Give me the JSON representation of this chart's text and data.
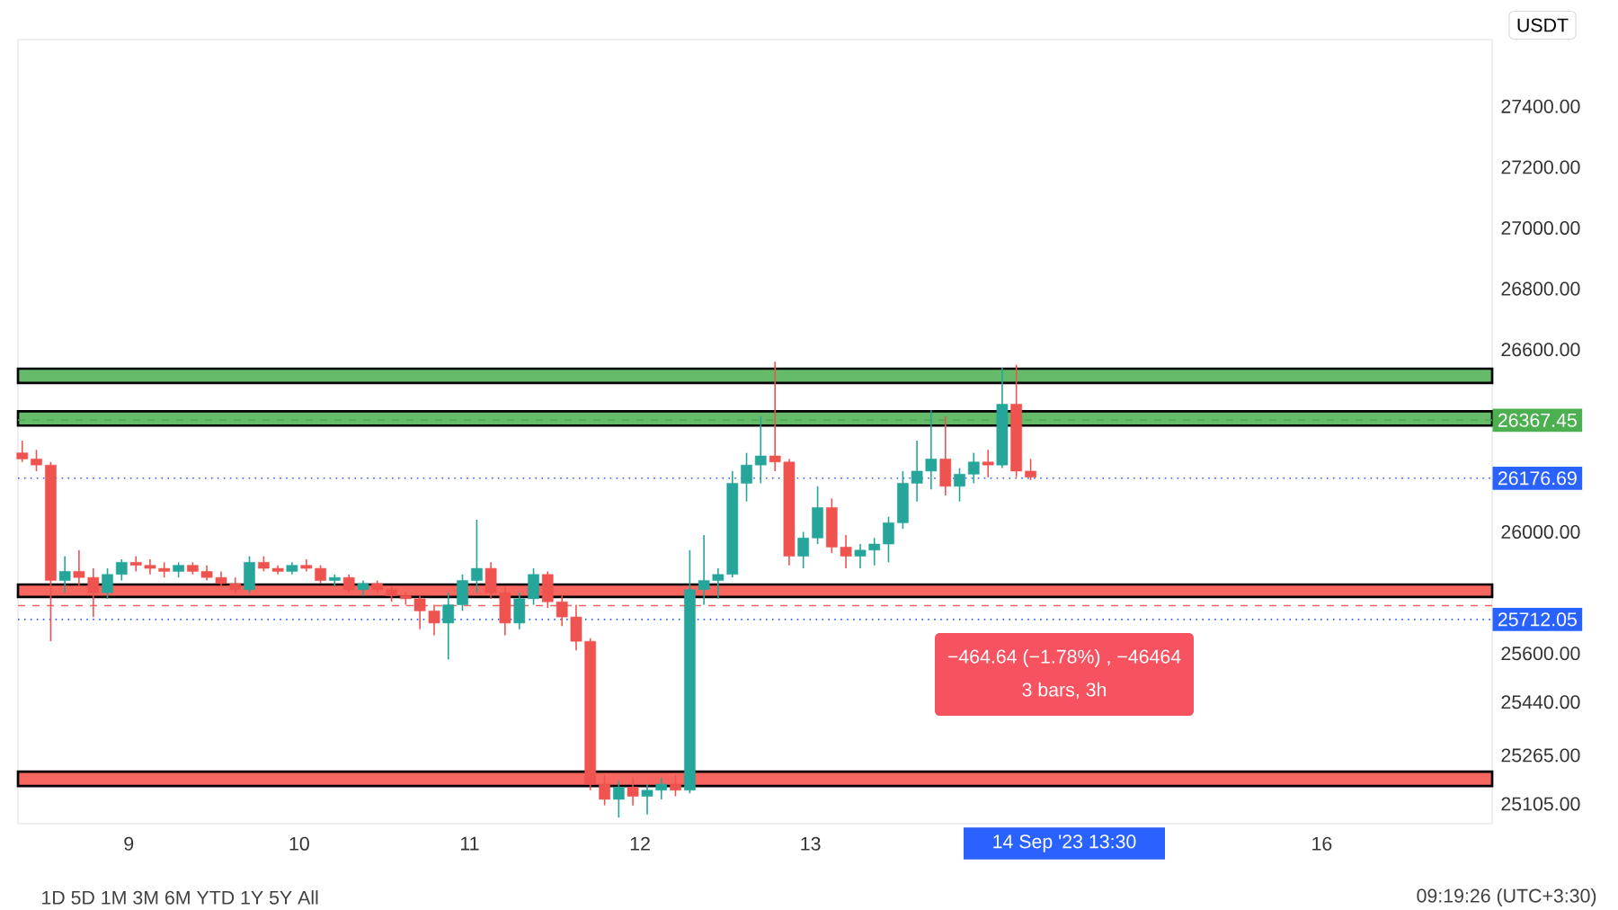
{
  "chart_data": {
    "type": "candlestick",
    "x": [
      8.375,
      8.458,
      8.542,
      8.625,
      8.708,
      8.792,
      8.875,
      8.958,
      9.042,
      9.125,
      9.208,
      9.292,
      9.375,
      9.458,
      9.542,
      9.625,
      9.708,
      9.792,
      9.875,
      9.958,
      10.042,
      10.125,
      10.208,
      10.292,
      10.375,
      10.458,
      10.542,
      10.625,
      10.708,
      10.792,
      10.875,
      10.958,
      11.042,
      11.125,
      11.208,
      11.292,
      11.375,
      11.458,
      11.542,
      11.625,
      11.708,
      11.792,
      11.875,
      11.958,
      12.042,
      12.125,
      12.208,
      12.292,
      12.375,
      12.458,
      12.542,
      12.625,
      12.708,
      12.792,
      12.875,
      12.958,
      13.042,
      13.125,
      13.208,
      13.292,
      13.375,
      13.458,
      13.542,
      13.625,
      13.708,
      13.792,
      13.875,
      13.958,
      14.042,
      14.125,
      14.208,
      14.292
    ],
    "ohlc": [
      [
        26260,
        26300,
        26230,
        26240
      ],
      [
        26240,
        26270,
        26200,
        26220
      ],
      [
        26220,
        26230,
        25640,
        25840
      ],
      [
        25840,
        25920,
        25800,
        25870
      ],
      [
        25870,
        25940,
        25820,
        25850
      ],
      [
        25850,
        25880,
        25720,
        25800
      ],
      [
        25800,
        25880,
        25780,
        25860
      ],
      [
        25860,
        25910,
        25840,
        25900
      ],
      [
        25900,
        25920,
        25870,
        25890
      ],
      [
        25890,
        25910,
        25860,
        25880
      ],
      [
        25880,
        25900,
        25850,
        25870
      ],
      [
        25870,
        25900,
        25850,
        25890
      ],
      [
        25890,
        25900,
        25860,
        25870
      ],
      [
        25870,
        25890,
        25840,
        25850
      ],
      [
        25850,
        25870,
        25820,
        25830
      ],
      [
        25830,
        25850,
        25800,
        25810
      ],
      [
        25810,
        25920,
        25800,
        25900
      ],
      [
        25900,
        25920,
        25870,
        25880
      ],
      [
        25880,
        25890,
        25860,
        25870
      ],
      [
        25870,
        25900,
        25860,
        25890
      ],
      [
        25890,
        25910,
        25870,
        25880
      ],
      [
        25880,
        25890,
        25830,
        25840
      ],
      [
        25840,
        25860,
        25820,
        25850
      ],
      [
        25850,
        25860,
        25800,
        25810
      ],
      [
        25810,
        25840,
        25790,
        25830
      ],
      [
        25830,
        25840,
        25800,
        25810
      ],
      [
        25810,
        25820,
        25770,
        25790
      ],
      [
        25790,
        25800,
        25760,
        25780
      ],
      [
        25780,
        25790,
        25680,
        25740
      ],
      [
        25740,
        25760,
        25660,
        25700
      ],
      [
        25700,
        25800,
        25580,
        25760
      ],
      [
        25760,
        25860,
        25740,
        25840
      ],
      [
        25840,
        26040,
        25800,
        25880
      ],
      [
        25880,
        25900,
        25780,
        25800
      ],
      [
        25800,
        25820,
        25660,
        25700
      ],
      [
        25700,
        25800,
        25680,
        25780
      ],
      [
        25780,
        25880,
        25760,
        25860
      ],
      [
        25860,
        25870,
        25750,
        25770
      ],
      [
        25770,
        25790,
        25690,
        25720
      ],
      [
        25720,
        25760,
        25610,
        25640
      ],
      [
        25640,
        25650,
        25150,
        25170
      ],
      [
        25170,
        25200,
        25100,
        25120
      ],
      [
        25120,
        25180,
        25060,
        25160
      ],
      [
        25160,
        25190,
        25100,
        25130
      ],
      [
        25130,
        25170,
        25070,
        25150
      ],
      [
        25150,
        25190,
        25120,
        25170
      ],
      [
        25170,
        25200,
        25130,
        25150
      ],
      [
        25150,
        25940,
        25140,
        25810
      ],
      [
        25810,
        25990,
        25760,
        25840
      ],
      [
        25840,
        25880,
        25780,
        25860
      ],
      [
        25860,
        26200,
        25850,
        26160
      ],
      [
        26160,
        26260,
        26100,
        26220
      ],
      [
        26220,
        26380,
        26160,
        26250
      ],
      [
        26250,
        26560,
        26200,
        26230
      ],
      [
        26230,
        26240,
        25890,
        25920
      ],
      [
        25920,
        26000,
        25880,
        25980
      ],
      [
        25980,
        26150,
        25960,
        26080
      ],
      [
        26080,
        26110,
        25930,
        25950
      ],
      [
        25950,
        25990,
        25880,
        25920
      ],
      [
        25920,
        25960,
        25880,
        25940
      ],
      [
        25940,
        25980,
        25890,
        25960
      ],
      [
        25960,
        26050,
        25900,
        26030
      ],
      [
        26030,
        26200,
        26010,
        26160
      ],
      [
        26160,
        26300,
        26100,
        26200
      ],
      [
        26200,
        26400,
        26140,
        26240
      ],
      [
        26240,
        26380,
        26120,
        26150
      ],
      [
        26150,
        26210,
        26100,
        26190
      ],
      [
        26190,
        26260,
        26160,
        26230
      ],
      [
        26230,
        26270,
        26180,
        26220
      ],
      [
        26220,
        26540,
        26210,
        26420
      ],
      [
        26420,
        26550,
        26180,
        26200
      ],
      [
        26200,
        26240,
        26170,
        26180
      ]
    ],
    "xlim": [
      8.35,
      17.0
    ],
    "xticks": [
      9,
      10,
      11,
      12,
      13,
      16
    ],
    "ylim": [
      25040,
      27620
    ],
    "yticks": [
      {
        "value": 27400,
        "label": "27400.00"
      },
      {
        "value": 27200,
        "label": "27200.00"
      },
      {
        "value": 27000,
        "label": "27000.00"
      },
      {
        "value": 26800,
        "label": "26800.00"
      },
      {
        "value": 26600,
        "label": "26600.00"
      },
      {
        "value": 26000,
        "label": "26000.00"
      },
      {
        "value": 25600,
        "label": "25600.00"
      },
      {
        "value": 25440,
        "label": "25440.00"
      },
      {
        "value": 25265,
        "label": "25265.00"
      },
      {
        "value": 25105,
        "label": "25105.00"
      }
    ],
    "bands": [
      {
        "axis": "y",
        "from": 26490,
        "to": 26537,
        "color": "#66bb6a"
      },
      {
        "axis": "y",
        "from": 26350,
        "to": 26397,
        "color": "#66bb6a"
      },
      {
        "axis": "y",
        "from": 25786,
        "to": 25827,
        "color": "#f7665f"
      },
      {
        "axis": "y",
        "from": 25164,
        "to": 25211,
        "color": "#f7665f"
      }
    ],
    "ref_lines": [
      {
        "axis": "y",
        "value": 26367.45,
        "label": "26367.45",
        "color": "#4caf50",
        "line_style": "dashed"
      },
      {
        "axis": "y",
        "value": 26176.69,
        "label": "26176.69",
        "color": "#2962ff",
        "line_style": "dotted"
      },
      {
        "axis": "y",
        "value": 25757.6,
        "color": "#f7665f",
        "line_style": "dashed"
      },
      {
        "axis": "y",
        "value": 25712.05,
        "label": "25712.05",
        "color": "#2962ff",
        "line_style": "dotted"
      }
    ],
    "annotations": [
      "USDT",
      "−464.64 (−1.78%) , −46464",
      "3 bars, 3h",
      "14 Sep '23 13:30",
      "1D 5D 1M 3M 6M YTD 1Y 5Y All",
      "09:19:26 (UTC+3:30)"
    ]
  }
}
